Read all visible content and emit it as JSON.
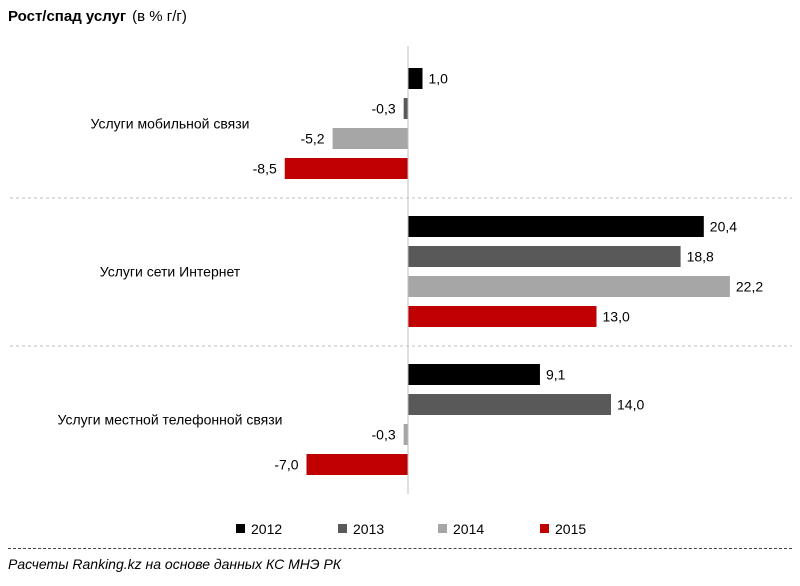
{
  "chart_data": {
    "type": "bar",
    "orientation": "horizontal",
    "title": "Рост/спад услуг",
    "subtitle": "(в % г/г)",
    "categories": [
      "Услуги мобильной связи",
      "Услуги сети Интернет",
      "Услуги местной телефонной связи"
    ],
    "series": [
      {
        "name": "2012",
        "color": "#000000",
        "values": [
          1.0,
          20.4,
          9.1
        ],
        "labels": [
          "1,0",
          "20,4",
          "9,1"
        ]
      },
      {
        "name": "2013",
        "color": "#595959",
        "values": [
          -0.3,
          18.8,
          14.0
        ],
        "labels": [
          "-0,3",
          "18,8",
          "14,0"
        ]
      },
      {
        "name": "2014",
        "color": "#a6a6a6",
        "values": [
          -5.2,
          22.2,
          -0.3
        ],
        "labels": [
          "-5,2",
          "22,2",
          "-0,3"
        ]
      },
      {
        "name": "2015",
        "color": "#c00000",
        "values": [
          -8.5,
          13.0,
          -7.0
        ],
        "labels": [
          "-8,5",
          "13,0",
          "-7,0"
        ]
      }
    ],
    "xlim": [
      -9,
      25
    ],
    "legend_position": "bottom",
    "grid": false
  },
  "source": "Расчеты Ranking.kz на основе данных КС МНЭ РК"
}
